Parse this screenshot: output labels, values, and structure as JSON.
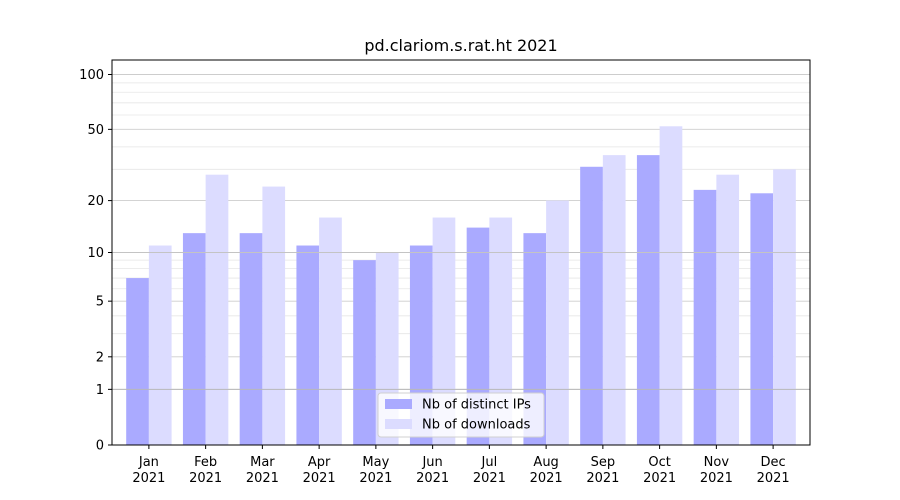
{
  "chart_data": {
    "type": "bar",
    "title": "pd.clariom.s.rat.ht 2021",
    "xlabel": "",
    "ylabel": "",
    "y_scale": "symlog",
    "ylim": [
      0,
      120
    ],
    "y_ticks": [
      0,
      1,
      2,
      5,
      10,
      20,
      50,
      100
    ],
    "y_tick_labels": [
      "0",
      "1",
      "2",
      "5",
      "10",
      "20",
      "50",
      "100"
    ],
    "grid": "horizontal",
    "legend_position": "bottom-center",
    "categories": [
      "Jan",
      "Feb",
      "Mar",
      "Apr",
      "May",
      "Jun",
      "Jul",
      "Aug",
      "Sep",
      "Oct",
      "Nov",
      "Dec"
    ],
    "category_years": [
      "2021",
      "2021",
      "2021",
      "2021",
      "2021",
      "2021",
      "2021",
      "2021",
      "2021",
      "2021",
      "2021",
      "2021"
    ],
    "series": [
      {
        "name": "Nb of distinct IPs",
        "color": "#aaaaff",
        "values": [
          7,
          13,
          13,
          11,
          9,
          11,
          14,
          13,
          31,
          36,
          23,
          22
        ]
      },
      {
        "name": "Nb of downloads",
        "color": "#dcdcff",
        "values": [
          11,
          28,
          24,
          16,
          10,
          16,
          16,
          20,
          36,
          52,
          28,
          30
        ]
      }
    ]
  }
}
